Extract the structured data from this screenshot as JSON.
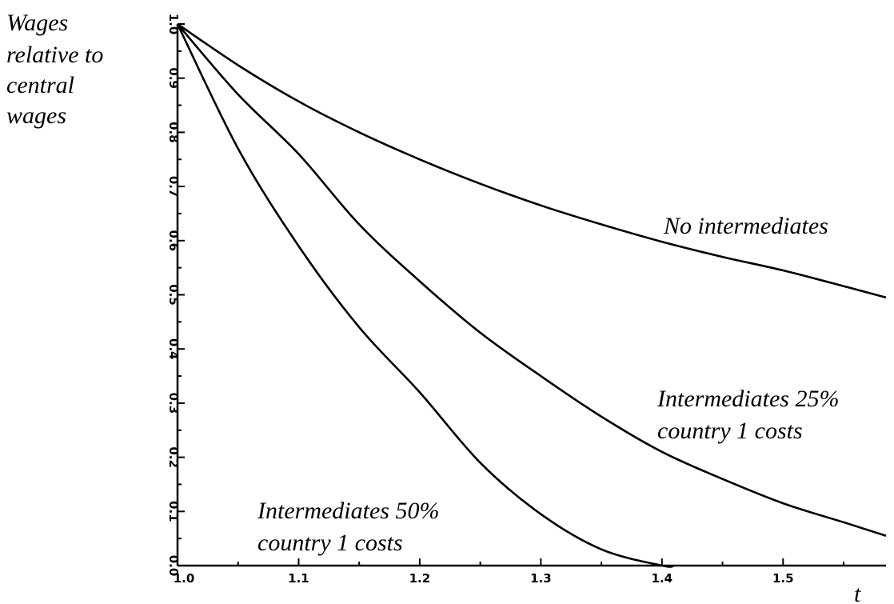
{
  "chart_data": {
    "type": "line",
    "ylabel_lines": [
      "Wages",
      "relative to",
      "central",
      "wages"
    ],
    "xlabel": "t",
    "xlim": [
      1.0,
      1.585
    ],
    "ylim": [
      0.0,
      1.0
    ],
    "xticks": [
      1.0,
      1.1,
      1.2,
      1.3,
      1.4,
      1.5
    ],
    "xtick_labels": [
      "1.0",
      "1.1",
      "1.2",
      "1.3",
      "1.4",
      "1.5"
    ],
    "yticks": [
      0.0,
      0.1,
      0.2,
      0.3,
      0.4,
      0.5,
      0.6,
      0.7,
      0.8,
      0.9,
      1.0
    ],
    "ytick_labels": [
      "0.0",
      "0.1",
      "0.2",
      "0.3",
      "0.4",
      "0.5",
      "0.6",
      "0.7",
      "0.8",
      "0.9",
      "1.0"
    ],
    "grid": false,
    "series": [
      {
        "name_lines": [
          "No intermediates"
        ],
        "x": [
          1.0,
          1.05,
          1.1,
          1.15,
          1.2,
          1.25,
          1.3,
          1.35,
          1.4,
          1.45,
          1.5,
          1.55,
          1.585
        ],
        "y": [
          1.0,
          0.924,
          0.857,
          0.8,
          0.75,
          0.705,
          0.665,
          0.63,
          0.598,
          0.57,
          0.545,
          0.516,
          0.495
        ]
      },
      {
        "name_lines": [
          "Intermediates 25%",
          "country 1 costs"
        ],
        "x": [
          1.0,
          1.05,
          1.1,
          1.15,
          1.2,
          1.25,
          1.3,
          1.35,
          1.4,
          1.45,
          1.5,
          1.55,
          1.585
        ],
        "y": [
          1.0,
          0.87,
          0.76,
          0.63,
          0.525,
          0.43,
          0.35,
          0.275,
          0.21,
          0.16,
          0.115,
          0.08,
          0.055
        ]
      },
      {
        "name_lines": [
          "Intermediates 50%",
          "country 1 costs"
        ],
        "x": [
          1.0,
          1.05,
          1.1,
          1.15,
          1.2,
          1.25,
          1.3,
          1.35,
          1.4,
          1.41
        ],
        "y": [
          1.0,
          0.77,
          0.59,
          0.44,
          0.32,
          0.19,
          0.095,
          0.03,
          0.0,
          0.0
        ]
      }
    ]
  }
}
